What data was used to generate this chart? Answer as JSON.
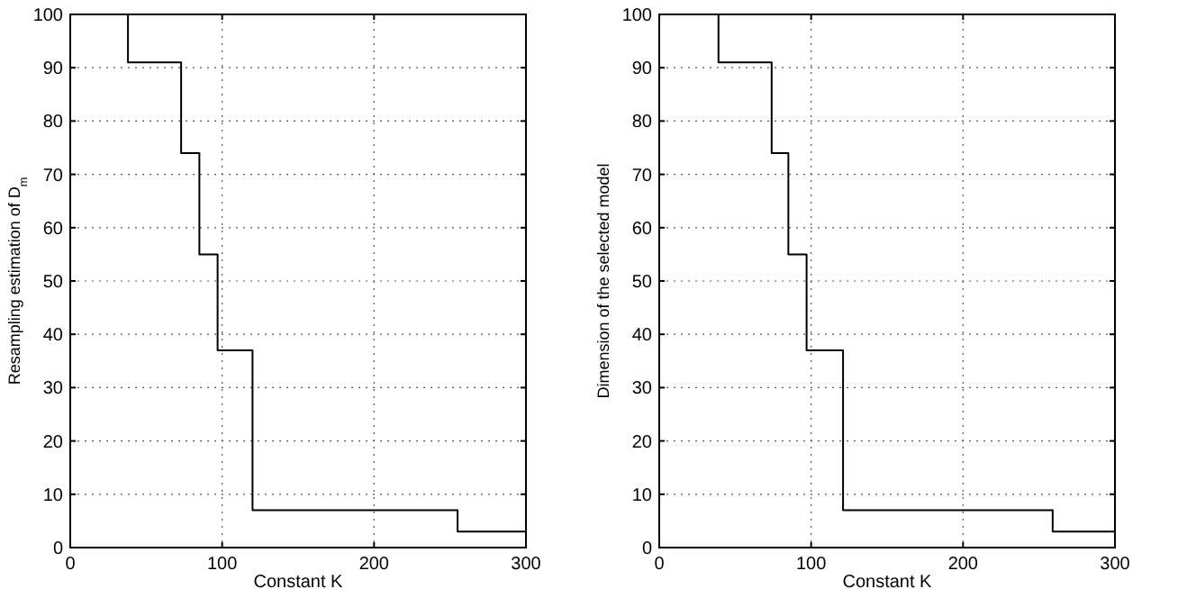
{
  "chart_data": [
    {
      "type": "step",
      "xlabel": "Constant K",
      "ylabel": "Resampling estimation of D$_{m}$",
      "x": [
        0,
        38,
        73,
        85,
        97,
        120,
        255,
        300
      ],
      "series": [
        {
          "color": "#000000",
          "values": [
            100,
            91,
            74,
            55,
            37,
            7,
            3,
            3
          ]
        }
      ],
      "xlim": [
        0,
        300
      ],
      "ylim": [
        0,
        100
      ],
      "xticks": [
        0,
        100,
        200,
        300
      ],
      "yticks": [
        0,
        10,
        20,
        30,
        40,
        50,
        60,
        70,
        80,
        90,
        100
      ],
      "grid": true,
      "line_style": "solid"
    },
    {
      "type": "step",
      "xlabel": "Constant K",
      "ylabel": "Dimension of the selected model",
      "x": [
        0,
        39,
        74,
        85,
        97,
        121,
        259,
        300
      ],
      "series": [
        {
          "color": "#000000",
          "values": [
            100,
            91,
            74,
            55,
            37,
            7,
            3,
            3
          ]
        }
      ],
      "xlim": [
        0,
        300
      ],
      "ylim": [
        0,
        100
      ],
      "xticks": [
        0,
        100,
        200,
        300
      ],
      "yticks": [
        0,
        10,
        20,
        30,
        40,
        50,
        60,
        70,
        80,
        90,
        100
      ],
      "grid": true,
      "line_style": "solid"
    }
  ]
}
